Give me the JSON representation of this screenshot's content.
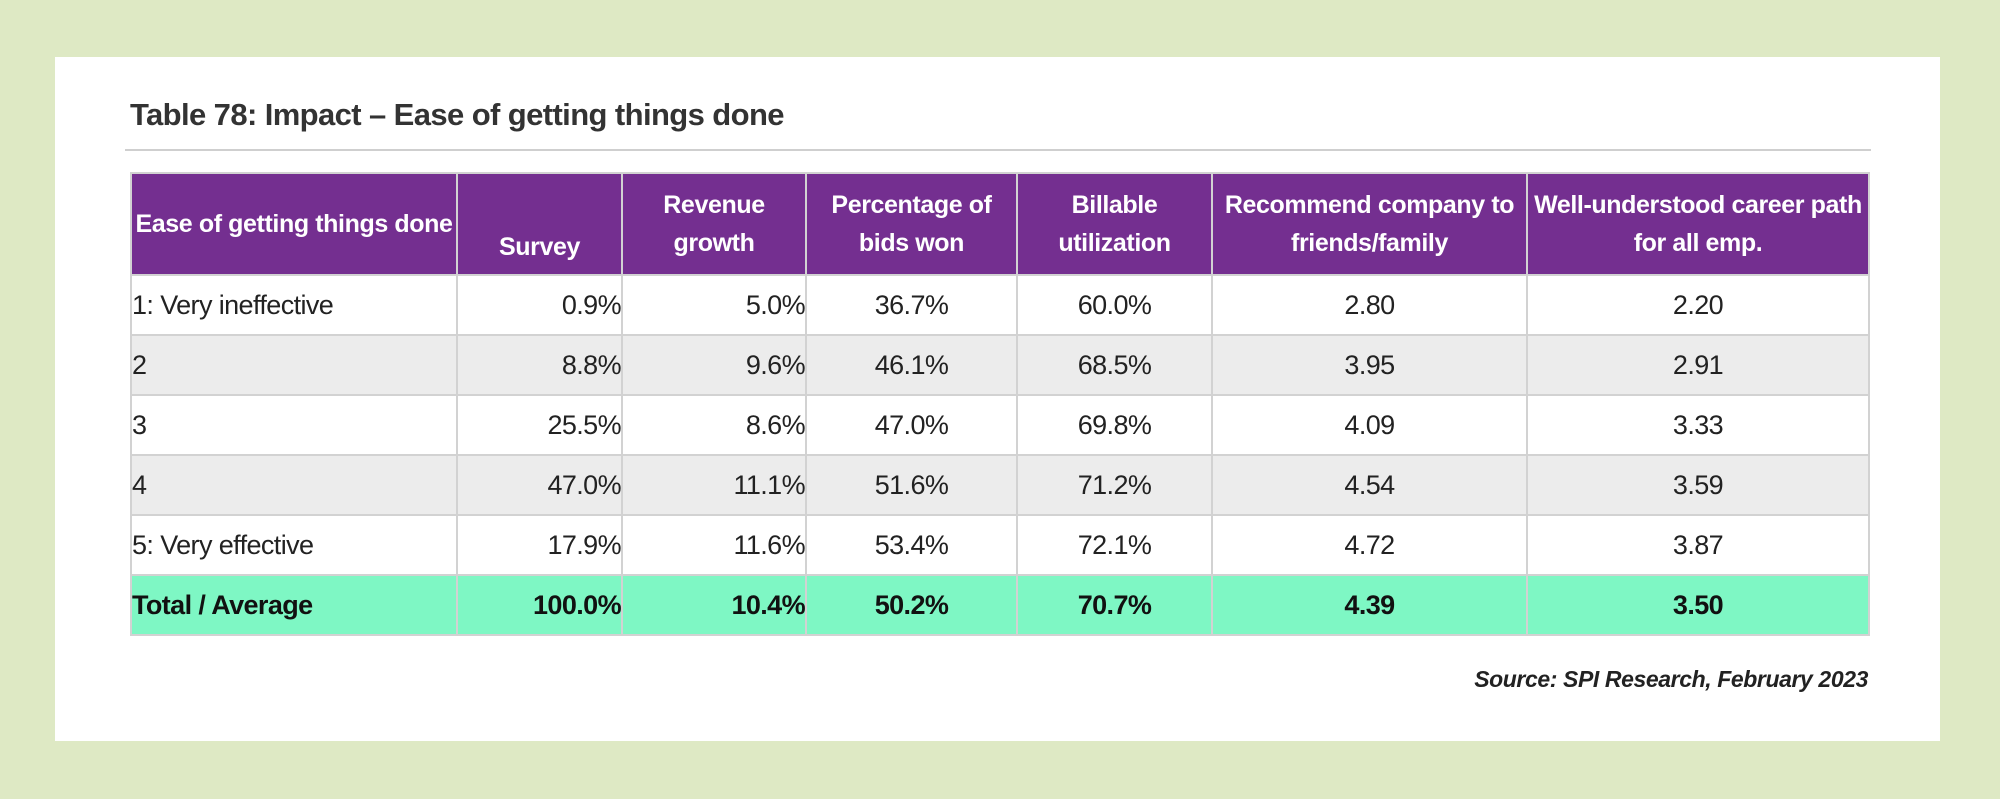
{
  "title": "Table 78:  Impact – Ease of getting things done",
  "columns": [
    "Ease of getting things done",
    "Survey",
    "Revenue growth",
    "Percentage of bids won",
    "Billable utilization",
    "Recommend company to friends/family",
    "Well-understood career path for all emp."
  ],
  "rows": [
    [
      "1: Very ineffective",
      "0.9%",
      "5.0%",
      "36.7%",
      "60.0%",
      "2.80",
      "2.20"
    ],
    [
      "2",
      "8.8%",
      "9.6%",
      "46.1%",
      "68.5%",
      "3.95",
      "2.91"
    ],
    [
      "3",
      "25.5%",
      "8.6%",
      "47.0%",
      "69.8%",
      "4.09",
      "3.33"
    ],
    [
      "4",
      "47.0%",
      "11.1%",
      "51.6%",
      "71.2%",
      "4.54",
      "3.59"
    ],
    [
      "5: Very effective",
      "17.9%",
      "11.6%",
      "53.4%",
      "72.1%",
      "4.72",
      "3.87"
    ]
  ],
  "total": [
    "Total / Average",
    "100.0%",
    "10.4%",
    "50.2%",
    "70.7%",
    "4.39",
    "3.50"
  ],
  "source": "Source: SPI Research, February 2023",
  "colors": {
    "header_bg": "#742f90",
    "total_bg": "#7ef7c4",
    "alt_row_bg": "#ececec",
    "page_bg": "#dee9c4"
  }
}
